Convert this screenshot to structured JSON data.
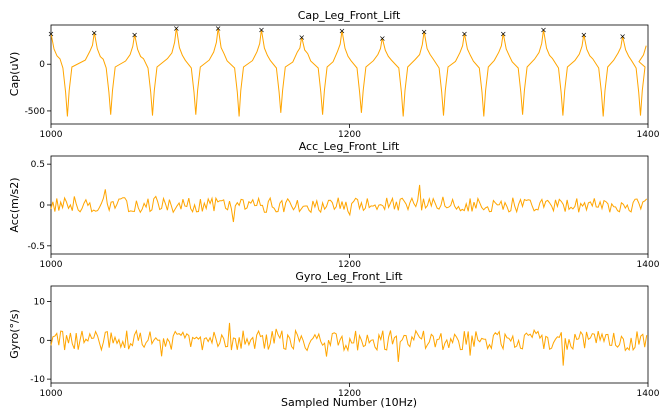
{
  "figure": {
    "xlabel": "Sampled Number (10Hz)",
    "line_color": "#FFA500",
    "peak_marker_color": "#FF0000"
  },
  "chart_data": [
    {
      "type": "line",
      "title": "Cap_Leg_Front_Lift",
      "ylabel": "Cap(uV)",
      "xlim": [
        1000,
        1400
      ],
      "ylim": [
        -640,
        420
      ],
      "x_ticks": [
        1000,
        1200,
        1400
      ],
      "y_ticks": [
        -500,
        0
      ],
      "series": [
        {
          "pattern": "periodic capacitive waveform: ~+320 plateau with sharp dips to ~-550 between each pair of peaks",
          "peaks": [
            {
              "x": 1000,
              "y": 330
            },
            {
              "x": 1029,
              "y": 340
            },
            {
              "x": 1056,
              "y": 320
            },
            {
              "x": 1084,
              "y": 390
            },
            {
              "x": 1112,
              "y": 390
            },
            {
              "x": 1141,
              "y": 370
            },
            {
              "x": 1168,
              "y": 290
            },
            {
              "x": 1195,
              "y": 360
            },
            {
              "x": 1222,
              "y": 280
            },
            {
              "x": 1250,
              "y": 350
            },
            {
              "x": 1277,
              "y": 330
            },
            {
              "x": 1303,
              "y": 330
            },
            {
              "x": 1330,
              "y": 370
            },
            {
              "x": 1357,
              "y": 320
            },
            {
              "x": 1383,
              "y": 300
            }
          ],
          "troughs": [
            {
              "x": 1011,
              "y": -560
            },
            {
              "x": 1040,
              "y": -540
            },
            {
              "x": 1068,
              "y": -550
            },
            {
              "x": 1097,
              "y": -540
            },
            {
              "x": 1126,
              "y": -560
            },
            {
              "x": 1154,
              "y": -520
            },
            {
              "x": 1182,
              "y": -540
            },
            {
              "x": 1208,
              "y": -520
            },
            {
              "x": 1236,
              "y": -560
            },
            {
              "x": 1263,
              "y": -550
            },
            {
              "x": 1290,
              "y": -560
            },
            {
              "x": 1316,
              "y": -540
            },
            {
              "x": 1343,
              "y": -550
            },
            {
              "x": 1370,
              "y": -560
            },
            {
              "x": 1395,
              "y": -550
            }
          ]
        }
      ]
    },
    {
      "type": "line",
      "title": "Acc_Leg_Front_Lift",
      "ylabel": "Acc(m/s2)",
      "xlim": [
        1000,
        1400
      ],
      "ylim": [
        -0.6,
        0.6
      ],
      "x_ticks": [
        1000,
        1200,
        1400
      ],
      "y_ticks": [
        -0.5,
        0.0,
        0.5
      ],
      "series": [
        {
          "pattern": "noisy signal around 0, mostly within ±0.15, occasional spikes to about ±0.3",
          "approx_range": [
            -0.25,
            0.3
          ]
        }
      ]
    },
    {
      "type": "line",
      "title": "Gyro_Leg_Front_Lift",
      "ylabel": "Gyro(°/s)",
      "xlim": [
        1000,
        1400
      ],
      "ylim": [
        -11,
        14
      ],
      "x_ticks": [
        1000,
        1200,
        1400
      ],
      "y_ticks": [
        -10,
        0,
        10
      ],
      "series": [
        {
          "pattern": "noisy signal around 0, mostly within ±4, occasional spikes to about ±7",
          "approx_range": [
            -8,
            7
          ]
        }
      ]
    }
  ]
}
